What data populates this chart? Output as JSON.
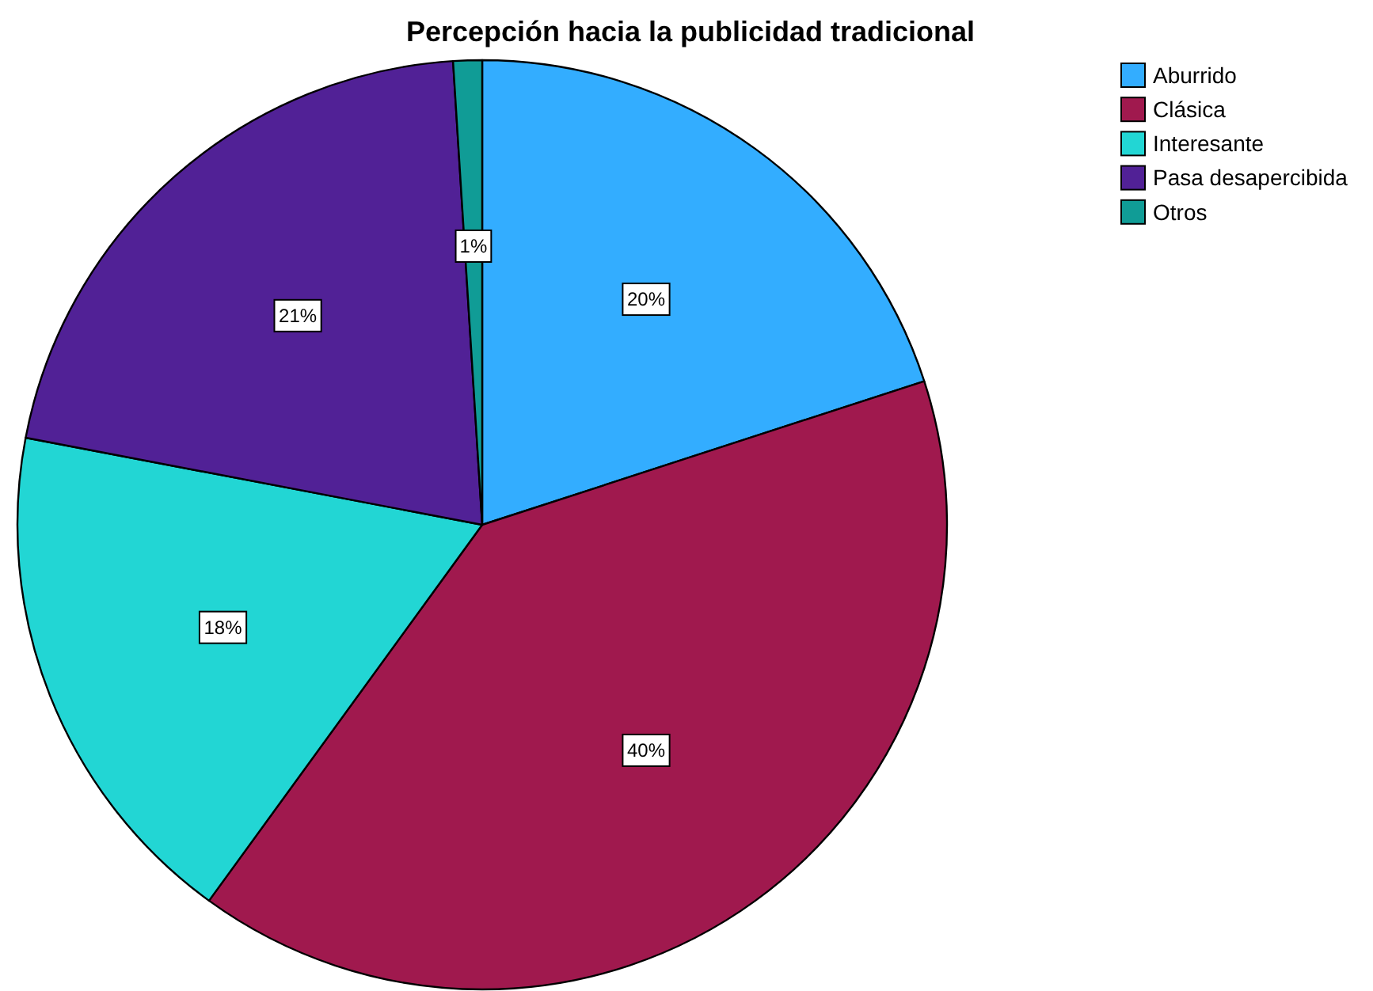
{
  "chart_data": {
    "type": "pie",
    "title": "Percepción hacia la publicidad tradicional",
    "categories": [
      "Aburrido",
      "Clásica",
      "Interesante",
      "Pasa desapercibida",
      "Otros"
    ],
    "values": [
      20,
      40,
      18,
      21,
      1
    ],
    "colors": [
      "#33adff",
      "#a0194e",
      "#22d6d4",
      "#512196",
      "#109c96"
    ],
    "value_labels": [
      "20%",
      "40%",
      "18%",
      "21%",
      "1%"
    ],
    "legend": "top right"
  }
}
